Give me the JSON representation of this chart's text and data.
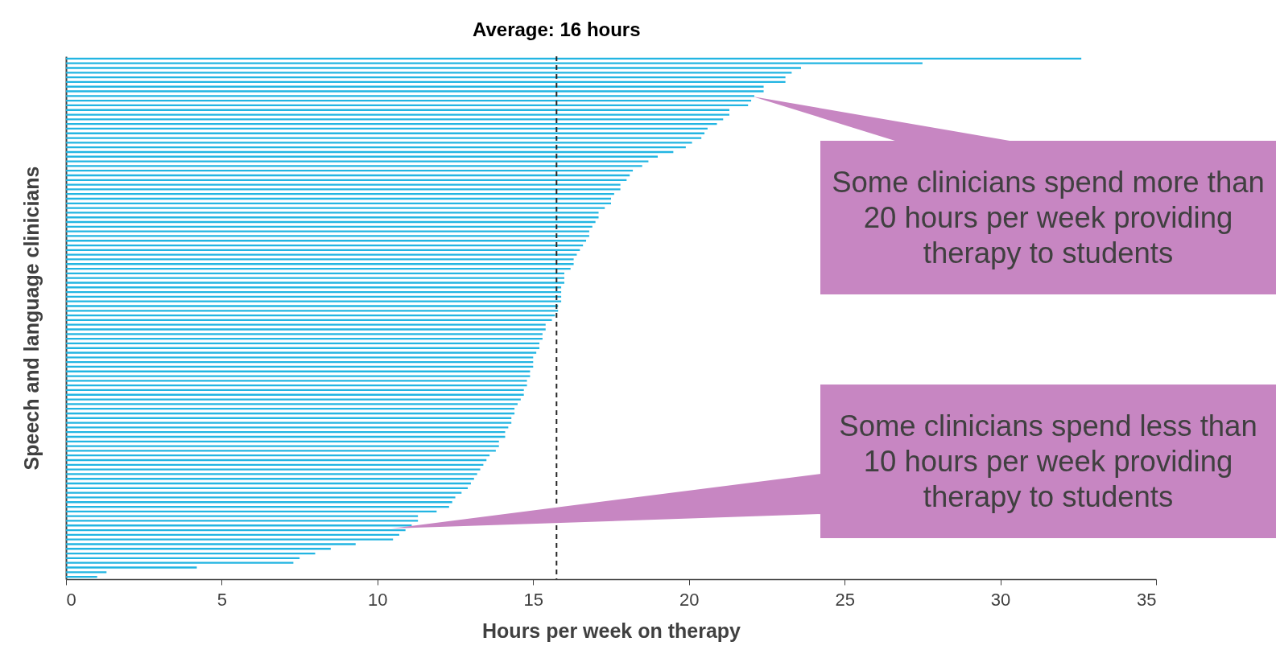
{
  "chart_data": {
    "type": "bar",
    "orientation": "horizontal",
    "xlabel": "Hours per week on therapy",
    "ylabel": "Speech and language clinicians",
    "categories": [
      null,
      null,
      null,
      null,
      null,
      null,
      null,
      null,
      null,
      null,
      null,
      null,
      null,
      null,
      null,
      null,
      null,
      null,
      null,
      null,
      null,
      null,
      null,
      null,
      null,
      null,
      null,
      null,
      null,
      null,
      null,
      null,
      null,
      null,
      null,
      null,
      null,
      null,
      null,
      null,
      null,
      null,
      null,
      null,
      null,
      null,
      null,
      null,
      null,
      null,
      null,
      null,
      null,
      null,
      null,
      null,
      null,
      null,
      null,
      null,
      null,
      null,
      null,
      null,
      null,
      null,
      null,
      null,
      null,
      null,
      null,
      null,
      null,
      null,
      null,
      null,
      null,
      null,
      null,
      null,
      null,
      null,
      null,
      null,
      null,
      null,
      null,
      null,
      null,
      null,
      null,
      null,
      null,
      null,
      null,
      null,
      null,
      null,
      null,
      null,
      null,
      null,
      null,
      null,
      null,
      null,
      null,
      null,
      null,
      null,
      null,
      null
    ],
    "values": [
      32.6,
      27.5,
      23.6,
      23.3,
      23.1,
      23.1,
      22.4,
      22.4,
      22.1,
      22.0,
      21.9,
      21.3,
      21.3,
      21.1,
      20.9,
      20.6,
      20.5,
      20.4,
      20.1,
      19.9,
      19.5,
      19.0,
      18.7,
      18.5,
      18.2,
      18.1,
      18.0,
      17.8,
      17.8,
      17.6,
      17.5,
      17.5,
      17.3,
      17.1,
      17.1,
      17.0,
      16.9,
      16.8,
      16.8,
      16.7,
      16.6,
      16.5,
      16.4,
      16.3,
      16.3,
      16.2,
      16.0,
      16.0,
      16.0,
      15.9,
      15.9,
      15.9,
      15.9,
      15.8,
      15.8,
      15.7,
      15.6,
      15.4,
      15.4,
      15.3,
      15.3,
      15.2,
      15.2,
      15.1,
      15.0,
      15.0,
      15.0,
      14.9,
      14.9,
      14.8,
      14.8,
      14.7,
      14.7,
      14.6,
      14.5,
      14.4,
      14.4,
      14.3,
      14.3,
      14.2,
      14.1,
      14.1,
      13.9,
      13.9,
      13.8,
      13.6,
      13.5,
      13.4,
      13.3,
      13.2,
      13.1,
      13.0,
      12.9,
      12.7,
      12.5,
      12.4,
      12.3,
      11.9,
      11.3,
      11.3,
      11.1,
      10.9,
      10.7,
      10.5,
      9.3,
      8.5,
      8.0,
      7.5,
      7.3,
      4.2,
      1.3,
      1.0
    ],
    "color": "#22b5e2",
    "xlim": [
      0,
      35
    ],
    "xticks": [
      0,
      5,
      10,
      15,
      20,
      25,
      30,
      35
    ],
    "ref_lines": [
      {
        "axis": "x",
        "value": 15.75,
        "label": "Average: 16 hours",
        "color": "#262626",
        "line_style": "dashed"
      }
    ],
    "annotations": [
      "Some clinicians spend more than 20 hours per week providing therapy to students",
      "Some clinicians spend less than 10 hours per week providing therapy to students"
    ]
  }
}
